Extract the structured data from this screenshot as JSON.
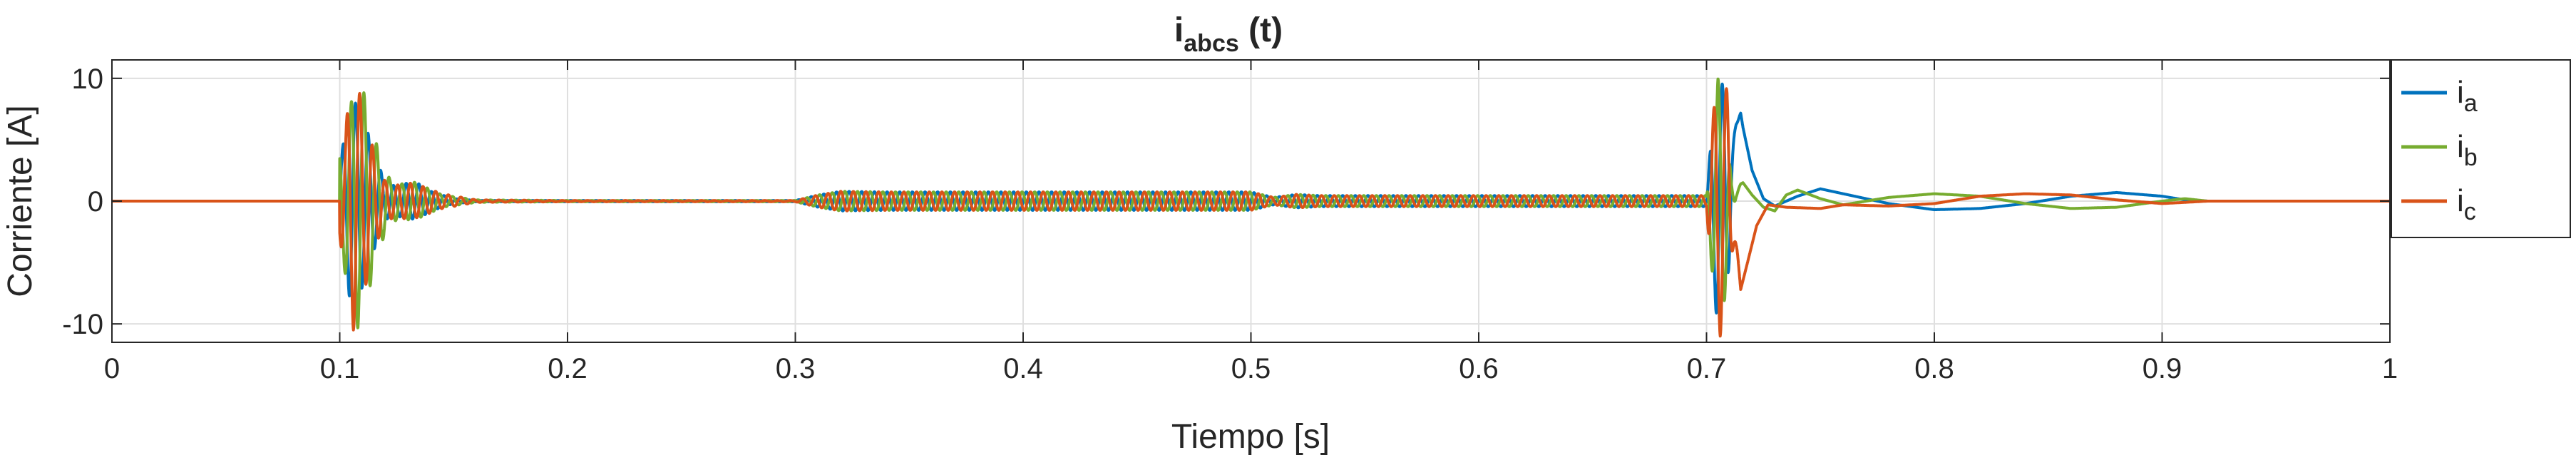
{
  "chart_data": {
    "type": "line",
    "title": {
      "main": "i",
      "subscript": "abcs",
      "suffix": " (t)"
    },
    "xlabel": "Tiempo [s]",
    "ylabel": "Corriente [A]",
    "xlim": [
      0,
      1
    ],
    "ylim": [
      -11.5,
      11.5
    ],
    "xticks": [
      0,
      0.1,
      0.2,
      0.3,
      0.4,
      0.5,
      0.6,
      0.7,
      0.8,
      0.9,
      1
    ],
    "xtick_labels": [
      "0",
      "0.1",
      "0.2",
      "0.3",
      "0.4",
      "0.5",
      "0.6",
      "0.7",
      "0.8",
      "0.9",
      "1"
    ],
    "yticks": [
      10,
      0,
      -10
    ],
    "ytick_labels": [
      "10",
      "0",
      "-10"
    ],
    "grid": true,
    "legend_position": "outside-right",
    "series": [
      {
        "name_main": "i",
        "name_sub": "a",
        "color": "#0072BD",
        "phase_deg": 0,
        "envelope": [
          [
            0,
            0
          ],
          [
            0.0999,
            0
          ],
          [
            0.1,
            3
          ],
          [
            0.105,
            8.6
          ],
          [
            0.11,
            7
          ],
          [
            0.115,
            4
          ],
          [
            0.12,
            1.5
          ],
          [
            0.125,
            1.2
          ],
          [
            0.13,
            1.5
          ],
          [
            0.135,
            1.4
          ],
          [
            0.14,
            0.8
          ],
          [
            0.15,
            0.2
          ],
          [
            0.16,
            0.05
          ],
          [
            0.2,
            0.05
          ],
          [
            0.3,
            0.05
          ],
          [
            0.31,
            0.5
          ],
          [
            0.32,
            0.8
          ],
          [
            0.34,
            0.75
          ],
          [
            0.45,
            0.75
          ],
          [
            0.5,
            0.75
          ],
          [
            0.51,
            0.3
          ],
          [
            0.52,
            0.55
          ],
          [
            0.53,
            0.45
          ],
          [
            0.6,
            0.45
          ],
          [
            0.7,
            0.45
          ],
          [
            0.702,
            5
          ],
          [
            0.705,
            10.5
          ],
          [
            0.708,
            9
          ],
          [
            0.711,
            3
          ],
          [
            0.715,
            0.2
          ],
          [
            1,
            0
          ]
        ],
        "tail": [
          [
            0.71,
            10.2
          ],
          [
            0.713,
            9.5
          ],
          [
            0.716,
            6
          ],
          [
            0.72,
            2.5
          ],
          [
            0.725,
            0.2
          ],
          [
            0.73,
            -0.4
          ],
          [
            0.74,
            0.4
          ],
          [
            0.75,
            1.0
          ],
          [
            0.76,
            0.6
          ],
          [
            0.78,
            -0.2
          ],
          [
            0.8,
            -0.7
          ],
          [
            0.82,
            -0.6
          ],
          [
            0.84,
            -0.2
          ],
          [
            0.86,
            0.4
          ],
          [
            0.88,
            0.7
          ],
          [
            0.9,
            0.4
          ],
          [
            0.91,
            0.1
          ],
          [
            0.92,
            0
          ],
          [
            1,
            0
          ]
        ]
      },
      {
        "name_main": "i",
        "name_sub": "b",
        "color": "#77AC30",
        "phase_deg": 120,
        "envelope": [
          [
            0,
            0
          ],
          [
            0.0999,
            0
          ],
          [
            0.1,
            4
          ],
          [
            0.108,
            10.4
          ],
          [
            0.112,
            8
          ],
          [
            0.117,
            4
          ],
          [
            0.122,
            1.8
          ],
          [
            0.127,
            1.4
          ],
          [
            0.132,
            1.6
          ],
          [
            0.137,
            1.2
          ],
          [
            0.145,
            0.5
          ],
          [
            0.16,
            0.1
          ],
          [
            0.2,
            0.05
          ],
          [
            0.3,
            0.05
          ],
          [
            0.31,
            0.5
          ],
          [
            0.32,
            0.8
          ],
          [
            0.34,
            0.75
          ],
          [
            0.45,
            0.75
          ],
          [
            0.5,
            0.75
          ],
          [
            0.51,
            0.3
          ],
          [
            0.52,
            0.55
          ],
          [
            0.53,
            0.45
          ],
          [
            0.6,
            0.45
          ],
          [
            0.7,
            0.45
          ],
          [
            0.702,
            5
          ],
          [
            0.705,
            10
          ],
          [
            0.708,
            8
          ],
          [
            0.711,
            2
          ],
          [
            0.715,
            0.2
          ],
          [
            1,
            0
          ]
        ],
        "tail": [
          [
            0.71,
            -2
          ],
          [
            0.713,
            1.2
          ],
          [
            0.716,
            1.5
          ],
          [
            0.72,
            0.5
          ],
          [
            0.725,
            -0.5
          ],
          [
            0.73,
            -0.8
          ],
          [
            0.735,
            0.5
          ],
          [
            0.74,
            0.9
          ],
          [
            0.75,
            0.2
          ],
          [
            0.76,
            -0.3
          ],
          [
            0.78,
            0.3
          ],
          [
            0.8,
            0.6
          ],
          [
            0.82,
            0.4
          ],
          [
            0.84,
            -0.2
          ],
          [
            0.86,
            -0.6
          ],
          [
            0.88,
            -0.5
          ],
          [
            0.9,
            0
          ],
          [
            0.91,
            0.2
          ],
          [
            0.92,
            0
          ],
          [
            1,
            0
          ]
        ]
      },
      {
        "name_main": "i",
        "name_sub": "c",
        "color": "#D95319",
        "phase_deg": 240,
        "envelope": [
          [
            0,
            0
          ],
          [
            0.0999,
            0
          ],
          [
            0.1,
            3
          ],
          [
            0.106,
            10.5
          ],
          [
            0.11,
            8
          ],
          [
            0.115,
            4
          ],
          [
            0.12,
            1.6
          ],
          [
            0.125,
            1.3
          ],
          [
            0.13,
            1.5
          ],
          [
            0.135,
            1.3
          ],
          [
            0.145,
            0.6
          ],
          [
            0.16,
            0.1
          ],
          [
            0.2,
            0.05
          ],
          [
            0.3,
            0.05
          ],
          [
            0.31,
            0.5
          ],
          [
            0.32,
            0.8
          ],
          [
            0.34,
            0.75
          ],
          [
            0.45,
            0.75
          ],
          [
            0.5,
            0.75
          ],
          [
            0.51,
            0.3
          ],
          [
            0.52,
            0.55
          ],
          [
            0.53,
            0.45
          ],
          [
            0.6,
            0.45
          ],
          [
            0.7,
            0.45
          ],
          [
            0.702,
            6
          ],
          [
            0.706,
            11
          ],
          [
            0.709,
            9
          ],
          [
            0.712,
            3
          ],
          [
            0.715,
            0.2
          ],
          [
            1,
            0
          ]
        ],
        "tail": [
          [
            0.71,
            -2
          ],
          [
            0.713,
            -6
          ],
          [
            0.715,
            -7.2
          ],
          [
            0.718,
            -5
          ],
          [
            0.722,
            -2
          ],
          [
            0.727,
            -0.3
          ],
          [
            0.735,
            -0.5
          ],
          [
            0.75,
            -0.6
          ],
          [
            0.76,
            -0.3
          ],
          [
            0.78,
            -0.4
          ],
          [
            0.8,
            -0.2
          ],
          [
            0.82,
            0.4
          ],
          [
            0.84,
            0.6
          ],
          [
            0.86,
            0.5
          ],
          [
            0.88,
            0.1
          ],
          [
            0.9,
            -0.2
          ],
          [
            0.92,
            0
          ],
          [
            1,
            0
          ]
        ]
      }
    ]
  }
}
